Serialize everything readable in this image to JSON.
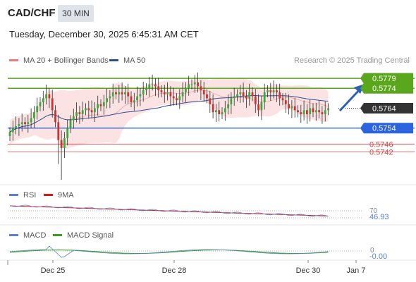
{
  "header": {
    "symbol": "CAD/CHF",
    "timeframe": "30 MIN",
    "datetime": "Tuesday, December 30, 2025 6:45:31 AM CET"
  },
  "legend": {
    "ma20_label": "MA 20 + Bollinger Bands",
    "ma20_color": "#f07878",
    "ma50_label": "MA 50",
    "ma50_color": "#2a4f91",
    "credit": "Research © 2025 Trading Central"
  },
  "levels": {
    "r2": "0.5779",
    "r1": "0.5774",
    "current": "0.5764",
    "pivot": "0.5754",
    "s1": "0.5746",
    "s2": "0.5742",
    "resistance_color": "#5aa61c",
    "pivot_color": "#2c64e0",
    "support_color": "#e04040",
    "current_color": "#333333"
  },
  "rsi": {
    "label": "RSI",
    "ma_label": "9MA",
    "rsi_color": "#5a7fd6",
    "ma_color": "#d61a1a",
    "level_70": "70",
    "value": "46.93"
  },
  "macd": {
    "label": "MACD",
    "signal_label": "MACD Signal",
    "macd_color": "#5a7fd6",
    "signal_color": "#36a01a",
    "level_0": "0",
    "value": "-0.00"
  },
  "chart_data": {
    "type": "candlestick",
    "xlabel_ticks": [
      "Dec 25",
      "Dec 28",
      "Dec 30",
      "Jan 7"
    ],
    "y_range": [
      0.5727,
      0.5784
    ],
    "close_series": [
      0.5752,
      0.5754,
      0.5755,
      0.5756,
      0.5757,
      0.5756,
      0.5757,
      0.5759,
      0.5762,
      0.5765,
      0.5767,
      0.5769,
      0.5771,
      0.5769,
      0.5763,
      0.5757,
      0.5748,
      0.5744,
      0.5749,
      0.5754,
      0.5758,
      0.576,
      0.5762,
      0.5761,
      0.5763,
      0.5764,
      0.5763,
      0.5762,
      0.5764,
      0.5766,
      0.5765,
      0.5767,
      0.5769,
      0.577,
      0.5772,
      0.5771,
      0.5772,
      0.5771,
      0.5772,
      0.577,
      0.5767,
      0.5768,
      0.577,
      0.5771,
      0.5773,
      0.5774,
      0.5776,
      0.5776,
      0.5775,
      0.5773,
      0.5772,
      0.5771,
      0.5772,
      0.577,
      0.5769,
      0.5768,
      0.577,
      0.5772,
      0.5774,
      0.5776,
      0.5776,
      0.5777,
      0.5775,
      0.5773,
      0.5771,
      0.5769,
      0.5766,
      0.5762,
      0.5763,
      0.5761,
      0.5762,
      0.5764,
      0.5766,
      0.5769,
      0.577,
      0.5771,
      0.5772,
      0.577,
      0.5769,
      0.5772,
      0.577,
      0.5766,
      0.5763,
      0.5767,
      0.5772,
      0.5773,
      0.5772,
      0.5773,
      0.5772,
      0.5769,
      0.5768,
      0.5766,
      0.5764,
      0.5765,
      0.5763,
      0.5762,
      0.5761,
      0.5763,
      0.5761,
      0.5764,
      0.5762,
      0.5763,
      0.5762,
      0.5761,
      0.5763,
      0.5764
    ]
  }
}
